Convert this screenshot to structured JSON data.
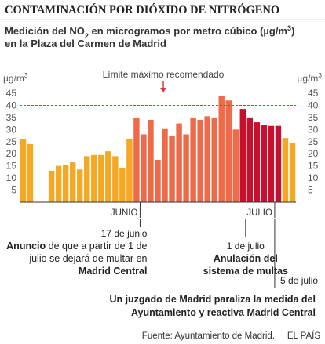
{
  "chart_data": {
    "type": "bar",
    "title": "CONTAMINACIÓN POR DIÓXIDO DE NITRÓGENO",
    "subtitle": [
      [
        {
          "t": "Medición del NO"
        },
        {
          "t": "2",
          "sub": true
        },
        {
          "t": " en microgramos por metro cúbico (µg/m"
        },
        {
          "t": "3",
          "sup": true
        },
        {
          "t": ")"
        }
      ],
      [
        {
          "t": "en la Plaza del Carmen de Madrid"
        }
      ]
    ],
    "y_unit": [
      {
        "t": "µg/m"
      },
      {
        "t": "3",
        "sup": true
      }
    ],
    "categories": [
      null,
      null,
      null,
      null,
      null,
      null,
      null,
      null,
      null,
      null,
      null,
      null,
      null,
      null,
      null,
      null,
      null,
      "JUNIO",
      null,
      null,
      null,
      null,
      null,
      null,
      null,
      null,
      null,
      null,
      null,
      null,
      null,
      null,
      null,
      null,
      null,
      null,
      "JULIO",
      null,
      null
    ],
    "values": [
      26,
      24,
      null,
      null,
      13,
      15,
      15.5,
      16.5,
      13.5,
      19,
      19.5,
      19.5,
      21,
      19,
      14,
      26,
      35,
      28,
      34,
      17.5,
      30.5,
      27.5,
      32.5,
      28,
      35,
      34,
      35.5,
      35,
      44,
      42,
      30,
      38.5,
      35,
      33,
      32,
      31.5,
      31.5,
      26.5,
      24.5
    ],
    "colors": [
      "#f4a823",
      "#f4a823",
      null,
      null,
      "#f4a823",
      "#f4a823",
      "#f4a823",
      "#f4a823",
      "#f4a823",
      "#f4a823",
      "#f4a823",
      "#f4a823",
      "#f4a823",
      "#f4a823",
      "#f4a823",
      "#f4a823",
      "#ee6a48",
      "#ee6a48",
      "#ee6a48",
      "#ee6a48",
      "#ee6a48",
      "#ee6a48",
      "#ee6a48",
      "#ee6a48",
      "#ee6a48",
      "#ee6a48",
      "#ee6a48",
      "#ee6a48",
      "#ee6a48",
      "#ee6a48",
      "#ee6a48",
      "#c8102e",
      "#c8102e",
      "#c8102e",
      "#c8102e",
      "#c8102e",
      "#c8102e",
      "#f4a823",
      "#f4a823"
    ],
    "ylim": [
      0,
      45
    ],
    "yticks": [
      5,
      10,
      15,
      20,
      25,
      30,
      35,
      40,
      45
    ],
    "grid": false,
    "reference": {
      "value": 40,
      "label": "Límite máximo recomendado",
      "color": "#e0383a"
    },
    "annotations": [
      {
        "date": "17 de junio",
        "lines": [
          [
            {
              "t": "Anuncio",
              "b": true
            },
            {
              "t": " de que a partir de 1 de"
            }
          ],
          [
            {
              "t": "julio se dejará de multar en"
            }
          ],
          [
            {
              "t": "Madrid Central",
              "b": true
            }
          ]
        ]
      },
      {
        "date": "1 de julio",
        "lines": [
          [
            {
              "t": "Anulación del",
              "b": true
            }
          ],
          [
            {
              "t": "sistema de multas",
              "b": true
            }
          ]
        ]
      },
      {
        "date": "5 de julio",
        "lines": [
          [
            {
              "t": "Un juzgado de Madrid paraliza la medida del",
              "b": true
            }
          ],
          [
            {
              "t": "Ayuntamiento y reactiva Madrid Central",
              "b": true
            }
          ]
        ]
      }
    ],
    "source": "Fuente: Ayuntamiento de Madrid.",
    "brand": "EL PAÍS"
  }
}
